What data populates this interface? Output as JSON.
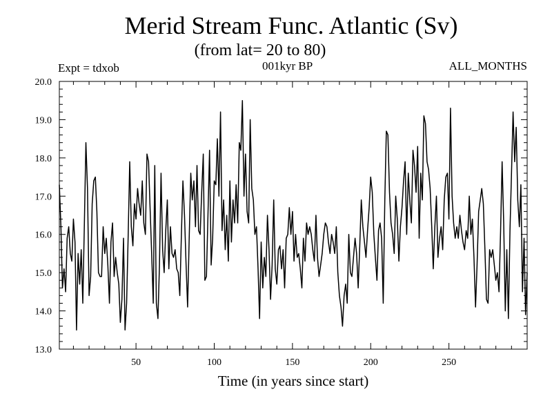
{
  "header": {
    "expt": "Expt = tdxob",
    "period": "001kyr BP",
    "months": "ALL_MONTHS"
  },
  "chart_data": {
    "type": "line",
    "title": "Merid Stream Func. Atlantic (Sv)",
    "subtitle": "(from lat= 20 to 80)",
    "xlabel": "Time (in years since start)",
    "ylabel": "",
    "xlim": [
      1,
      300
    ],
    "ylim": [
      13.0,
      20.0
    ],
    "x_ticks": [
      50,
      100,
      150,
      200,
      250
    ],
    "y_ticks": [
      "13.0",
      "14.0",
      "15.0",
      "16.0",
      "17.0",
      "18.0",
      "19.0",
      "20.0"
    ],
    "grid": false,
    "series": [
      {
        "color": "#000000",
        "x_start": 1,
        "x_step": 1,
        "values": [
          17.3,
          16.2,
          14.6,
          15.1,
          14.5,
          15.9,
          16.2,
          15.5,
          15.3,
          16.4,
          15.8,
          13.5,
          15.5,
          14.7,
          15.6,
          14.2,
          16.3,
          18.4,
          17.2,
          14.4,
          14.9,
          16.8,
          17.4,
          17.5,
          16.6,
          15.0,
          14.9,
          14.9,
          16.2,
          15.5,
          15.9,
          15.2,
          14.2,
          15.8,
          16.3,
          14.9,
          15.4,
          15.0,
          14.7,
          13.7,
          14.3,
          15.9,
          13.5,
          14.2,
          16.0,
          17.9,
          16.2,
          15.7,
          16.8,
          16.4,
          17.2,
          16.8,
          16.5,
          17.4,
          16.3,
          16.0,
          18.1,
          17.9,
          16.7,
          15.5,
          14.2,
          17.8,
          14.2,
          13.8,
          15.2,
          17.6,
          15.6,
          15.0,
          16.1,
          16.9,
          15.1,
          16.2,
          15.5,
          15.4,
          15.6,
          15.1,
          15.0,
          14.4,
          16.0,
          17.4,
          16.5,
          15.2,
          14.1,
          15.9,
          17.6,
          16.9,
          17.4,
          16.2,
          17.8,
          16.1,
          16.0,
          17.1,
          18.1,
          14.8,
          14.9,
          16.5,
          18.2,
          15.2,
          15.9,
          17.4,
          17.3,
          18.5,
          17.0,
          19.2,
          16.1,
          16.9,
          15.6,
          16.5,
          15.3,
          17.4,
          15.8,
          16.9,
          16.3,
          17.3,
          16.3,
          18.4,
          18.2,
          19.5,
          17.0,
          18.1,
          16.6,
          16.3,
          19.0,
          17.2,
          16.9,
          16.0,
          16.2,
          15.1,
          13.8,
          15.8,
          14.6,
          15.4,
          14.9,
          16.5,
          15.6,
          14.3,
          15.2,
          16.9,
          15.1,
          14.7,
          15.6,
          15.7,
          15.1,
          15.6,
          14.6,
          15.9,
          16.0,
          16.7,
          16.0,
          16.6,
          15.3,
          16.0,
          15.4,
          15.5,
          15.1,
          14.6,
          15.9,
          15.3,
          16.3,
          16.0,
          16.2,
          16.0,
          15.6,
          15.3,
          16.5,
          15.4,
          14.9,
          15.2,
          15.5,
          16.0,
          16.3,
          16.2,
          15.8,
          15.5,
          16.0,
          15.8,
          15.5,
          16.2,
          15.0,
          14.4,
          14.1,
          13.6,
          14.4,
          14.7,
          14.2,
          16.0,
          15.0,
          14.9,
          15.4,
          15.9,
          15.5,
          14.6,
          15.7,
          16.9,
          16.2,
          15.8,
          15.4,
          16.1,
          16.7,
          17.5,
          17.1,
          16.0,
          15.4,
          14.8,
          16.1,
          16.3,
          15.9,
          14.2,
          16.9,
          18.7,
          18.6,
          17.1,
          16.3,
          16.0,
          15.5,
          17.0,
          16.4,
          15.3,
          16.2,
          16.7,
          17.4,
          17.9,
          16.0,
          17.6,
          16.9,
          16.3,
          18.2,
          17.8,
          17.1,
          18.3,
          15.9,
          17.6,
          16.9,
          19.1,
          18.9,
          17.9,
          17.7,
          17.2,
          16.2,
          15.1,
          16.2,
          17.0,
          15.4,
          15.9,
          16.2,
          15.6,
          16.9,
          17.5,
          17.6,
          16.4,
          19.3,
          17.0,
          16.3,
          15.9,
          16.2,
          15.9,
          16.5,
          16.1,
          15.8,
          15.6,
          16.1,
          15.9,
          17.0,
          16.0,
          16.4,
          15.4,
          14.1,
          15.2,
          16.6,
          16.9,
          17.2,
          16.8,
          15.6,
          14.3,
          14.2,
          15.6,
          15.4,
          15.6,
          15.2,
          14.8,
          15.0,
          14.5,
          16.1,
          17.9,
          16.3,
          14.0,
          15.6,
          13.8,
          16.1,
          17.6,
          19.2,
          17.9,
          18.8,
          16.9,
          16.2,
          17.3,
          14.5,
          15.9,
          13.9,
          15.0
        ]
      }
    ]
  }
}
